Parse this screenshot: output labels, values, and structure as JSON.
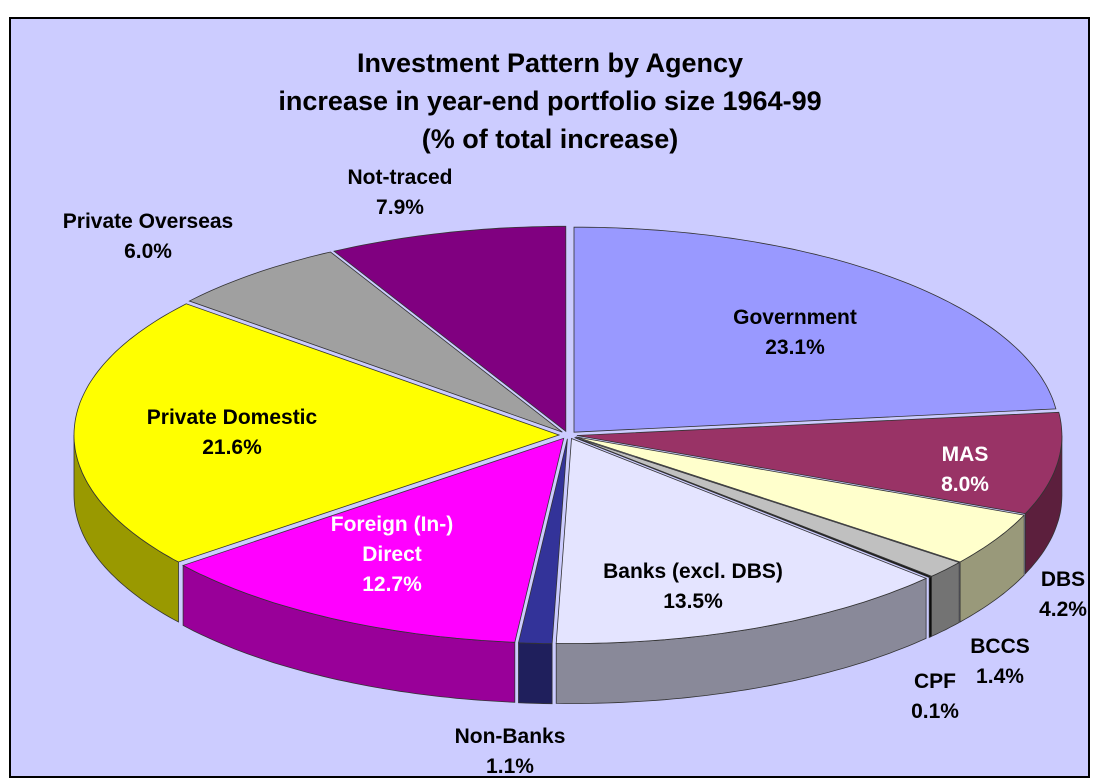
{
  "chart_data": {
    "type": "pie",
    "title": "Investment Pattern by Agency",
    "subtitle": "increase in year-end portfolio size 1964-99",
    "note": "(% of total increase)",
    "categories": [
      "Government",
      "MAS",
      "DBS",
      "BCCS",
      "CPF",
      "Banks (excl. DBS)",
      "Non-Banks",
      "Foreign (In-) Direct",
      "Private Domestic",
      "Private Overseas",
      "Not-traced"
    ],
    "values": [
      23.1,
      8.0,
      4.2,
      1.4,
      0.1,
      13.5,
      1.1,
      12.7,
      21.6,
      6.0,
      7.9
    ],
    "value_labels": [
      "23.1%",
      "8.0%",
      "4.2%",
      "1.4%",
      "0.1%",
      "13.5%",
      "1.1%",
      "12.7%",
      "21.6%",
      "6.0%",
      "7.9%"
    ],
    "colors": [
      "#9999ff",
      "#993366",
      "#ffffcc",
      "#c0c0c0",
      "#111111",
      "#e4e4ff",
      "#333399",
      "#ff00ff",
      "#ffff00",
      "#a0a0a0",
      "#800080"
    ]
  }
}
